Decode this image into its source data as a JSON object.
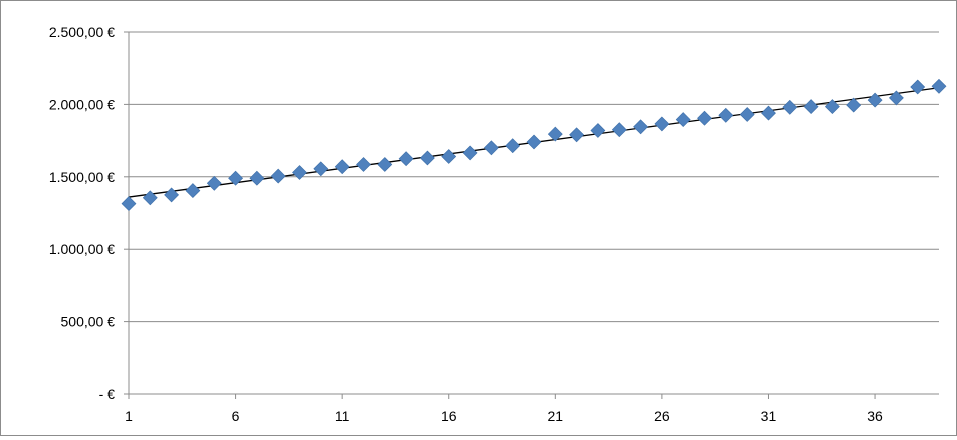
{
  "chart_data": {
    "type": "scatter",
    "title": "",
    "xlabel": "",
    "ylabel": "",
    "x_ticks": [
      "1",
      "6",
      "11",
      "16",
      "21",
      "26",
      "31",
      "36"
    ],
    "y_ticks": [
      "2.500,00 €",
      "2.000,00 €",
      "1.500,00 €",
      "1.000,00 €",
      "500,00 €",
      "-   €"
    ],
    "xlim": [
      1,
      39
    ],
    "ylim": [
      0,
      2500
    ],
    "grid": "horizontal",
    "legend": "none",
    "marker": "diamond",
    "marker_color": "#4f81bd",
    "trendline_color": "#000000",
    "series": [
      {
        "x": [
          1,
          2,
          3,
          4,
          5,
          6,
          7,
          8,
          9,
          10,
          11,
          12,
          13,
          14,
          15,
          16,
          17,
          18,
          19,
          20,
          21,
          22,
          23,
          24,
          25,
          26,
          27,
          28,
          29,
          30,
          31,
          32,
          33,
          34,
          35,
          36,
          37,
          38,
          39
        ],
        "values": [
          1315,
          1355,
          1375,
          1405,
          1455,
          1490,
          1490,
          1505,
          1530,
          1555,
          1570,
          1585,
          1585,
          1625,
          1630,
          1640,
          1665,
          1700,
          1715,
          1740,
          1795,
          1790,
          1820,
          1825,
          1845,
          1865,
          1895,
          1905,
          1925,
          1930,
          1940,
          1980,
          1985,
          1985,
          1995,
          2030,
          2045,
          2120,
          2125
        ]
      }
    ],
    "trendline": {
      "type": "linear",
      "start": [
        1,
        1360
      ],
      "end": [
        39,
        2115
      ]
    }
  }
}
